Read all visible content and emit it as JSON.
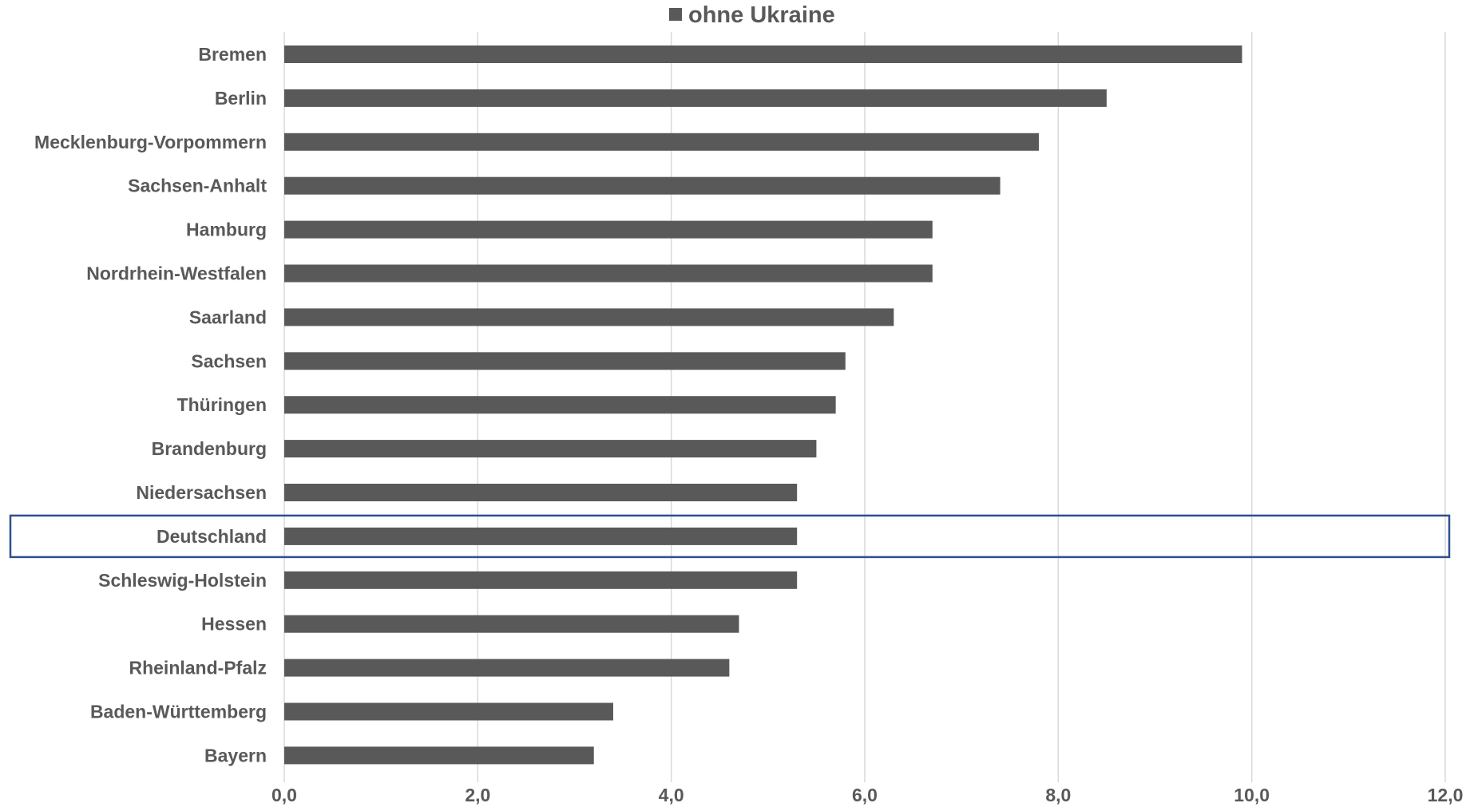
{
  "chart_data": {
    "type": "bar",
    "orientation": "horizontal",
    "categories": [
      "Bremen",
      "Berlin",
      "Mecklenburg-Vorpommern",
      "Sachsen-Anhalt",
      "Hamburg",
      "Nordrhein-Westfalen",
      "Saarland",
      "Sachsen",
      "Thüringen",
      "Brandenburg",
      "Niedersachsen",
      "Deutschland",
      "Schleswig-Holstein",
      "Hessen",
      "Rheinland-Pfalz",
      "Baden-Württemberg",
      "Bayern"
    ],
    "series": [
      {
        "name": "ohne Ukraine",
        "color": "#595959",
        "values": [
          9.9,
          8.5,
          7.8,
          7.4,
          6.7,
          6.7,
          6.3,
          5.8,
          5.7,
          5.5,
          5.3,
          5.3,
          5.3,
          4.7,
          4.6,
          3.4,
          3.2
        ]
      }
    ],
    "xlim": [
      0,
      12
    ],
    "xticks": [
      0,
      2,
      4,
      6,
      8,
      10,
      12
    ],
    "xtick_labels": [
      "0,0",
      "2,0",
      "4,0",
      "6,0",
      "8,0",
      "10,0",
      "12,0"
    ],
    "grid": true,
    "grid_color": "#d9d9d9",
    "legend_position": "top",
    "highlighted_category": "Deutschland",
    "highlight_color": "#2f4f8f",
    "title": "",
    "xlabel": "",
    "ylabel": ""
  }
}
